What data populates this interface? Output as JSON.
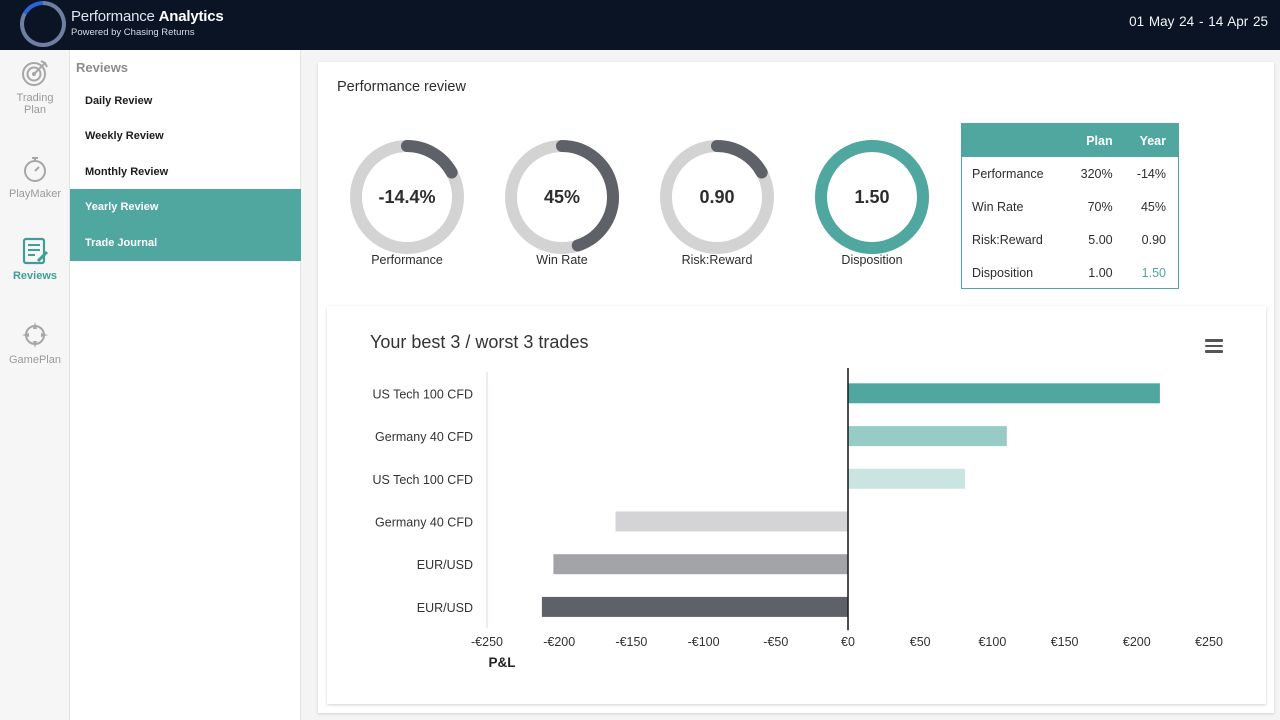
{
  "header": {
    "title_light": "Performance ",
    "title_bold": "Analytics",
    "subtitle": "Powered by Chasing Returns",
    "date_range": "01 May 24  -  14 Apr 25"
  },
  "rail": {
    "items": [
      {
        "label_line1": "Trading",
        "label_line2": "Plan",
        "icon": "target-icon"
      },
      {
        "label_line1": "PlayMaker",
        "icon": "stopwatch-icon"
      },
      {
        "label_line1": "Reviews",
        "icon": "review-document-icon",
        "active": true
      },
      {
        "label_line1": "GamePlan",
        "icon": "compass-icon"
      }
    ]
  },
  "submenu": {
    "title": "Reviews",
    "items": [
      {
        "label": "Daily Review"
      },
      {
        "label": "Weekly Review"
      },
      {
        "label": "Monthly Review"
      },
      {
        "label": "Yearly Review",
        "active": true
      },
      {
        "label": "Trade Journal",
        "active": true
      }
    ]
  },
  "review": {
    "title": "Performance review",
    "gauges": [
      {
        "label": "Performance",
        "display": "-14.4%",
        "fill_fraction": 0.17,
        "color": "#5f6168"
      },
      {
        "label": "Win Rate",
        "display": "45%",
        "fill_fraction": 0.45,
        "color": "#5f6168"
      },
      {
        "label": "Risk:Reward",
        "display": "0.90",
        "fill_fraction": 0.17,
        "color": "#5f6168"
      },
      {
        "label": "Disposition",
        "display": "1.50",
        "fill_fraction": 1.0,
        "color": "#4fa79f"
      }
    ],
    "summary": {
      "headers": [
        "",
        "Plan",
        "Year"
      ],
      "rows": [
        {
          "label": "Performance",
          "plan": "320%",
          "year": "-14%"
        },
        {
          "label": "Win Rate",
          "plan": "70%",
          "year": "45%"
        },
        {
          "label": "Risk:Reward",
          "plan": "5.00",
          "year": "0.90"
        },
        {
          "label": "Disposition",
          "plan": "1.00",
          "year": "1.50",
          "highlight": true
        }
      ]
    }
  },
  "chart_data": {
    "type": "bar",
    "orientation": "horizontal",
    "title": "Your best 3 / worst 3 trades",
    "xlabel": "P&L",
    "categories": [
      "US Tech 100 CFD",
      "Germany 40 CFD",
      "US Tech 100 CFD",
      "Germany 40 CFD",
      "EUR/USD",
      "EUR/USD"
    ],
    "values": [
      216,
      110,
      81,
      -161,
      -204,
      -212
    ],
    "bar_colors": [
      "#4fa79f",
      "#97cbc6",
      "#c9e4e1",
      "#d4d4d6",
      "#a3a4a8",
      "#5f6168"
    ],
    "xlim": [
      -250,
      250
    ],
    "ticks": [
      -250,
      -200,
      -150,
      -100,
      -50,
      0,
      50,
      100,
      150,
      200,
      250
    ],
    "tick_labels": [
      "-€250",
      "-€200",
      "-€150",
      "-€100",
      "-€50",
      "€0",
      "€50",
      "€100",
      "€150",
      "€200",
      "€250"
    ]
  }
}
